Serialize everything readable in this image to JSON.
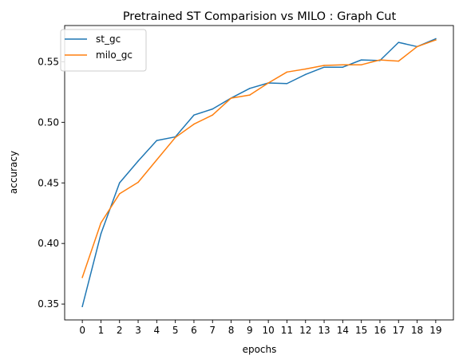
{
  "chart_data": {
    "type": "line",
    "title": "Pretrained ST Comparision vs MILO : Graph Cut",
    "xlabel": "epochs",
    "ylabel": "accuracy",
    "x": [
      0,
      1,
      2,
      3,
      4,
      5,
      6,
      7,
      8,
      9,
      10,
      11,
      12,
      13,
      14,
      15,
      16,
      17,
      18,
      19
    ],
    "x_tick_labels": [
      "0",
      "1",
      "2",
      "3",
      "4",
      "5",
      "6",
      "7",
      "8",
      "9",
      "10",
      "11",
      "12",
      "13",
      "14",
      "15",
      "16",
      "17",
      "18",
      "19"
    ],
    "y_ticks": [
      0.35,
      0.4,
      0.45,
      0.5,
      0.55
    ],
    "y_tick_labels": [
      "0.35",
      "0.40",
      "0.45",
      "0.50",
      "0.55"
    ],
    "xlim": [
      -0.95,
      19.95
    ],
    "ylim": [
      0.3369,
      0.5799
    ],
    "grid": false,
    "legend_position": "upper-left",
    "series": [
      {
        "name": "st_gc",
        "color": "#1f77b4",
        "values": [
          0.348,
          0.408,
          0.45,
          0.468,
          0.485,
          0.488,
          0.506,
          0.511,
          0.52,
          0.528,
          0.5325,
          0.532,
          0.5395,
          0.5455,
          0.5455,
          0.5515,
          0.551,
          0.566,
          0.5625,
          0.569
        ]
      },
      {
        "name": "milo_gc",
        "color": "#ff7f0e",
        "values": [
          0.372,
          0.417,
          0.441,
          0.4505,
          0.469,
          0.4875,
          0.4985,
          0.506,
          0.52,
          0.5225,
          0.5325,
          0.5415,
          0.544,
          0.547,
          0.5475,
          0.5475,
          0.5515,
          0.5505,
          0.5625,
          0.568
        ]
      }
    ]
  }
}
